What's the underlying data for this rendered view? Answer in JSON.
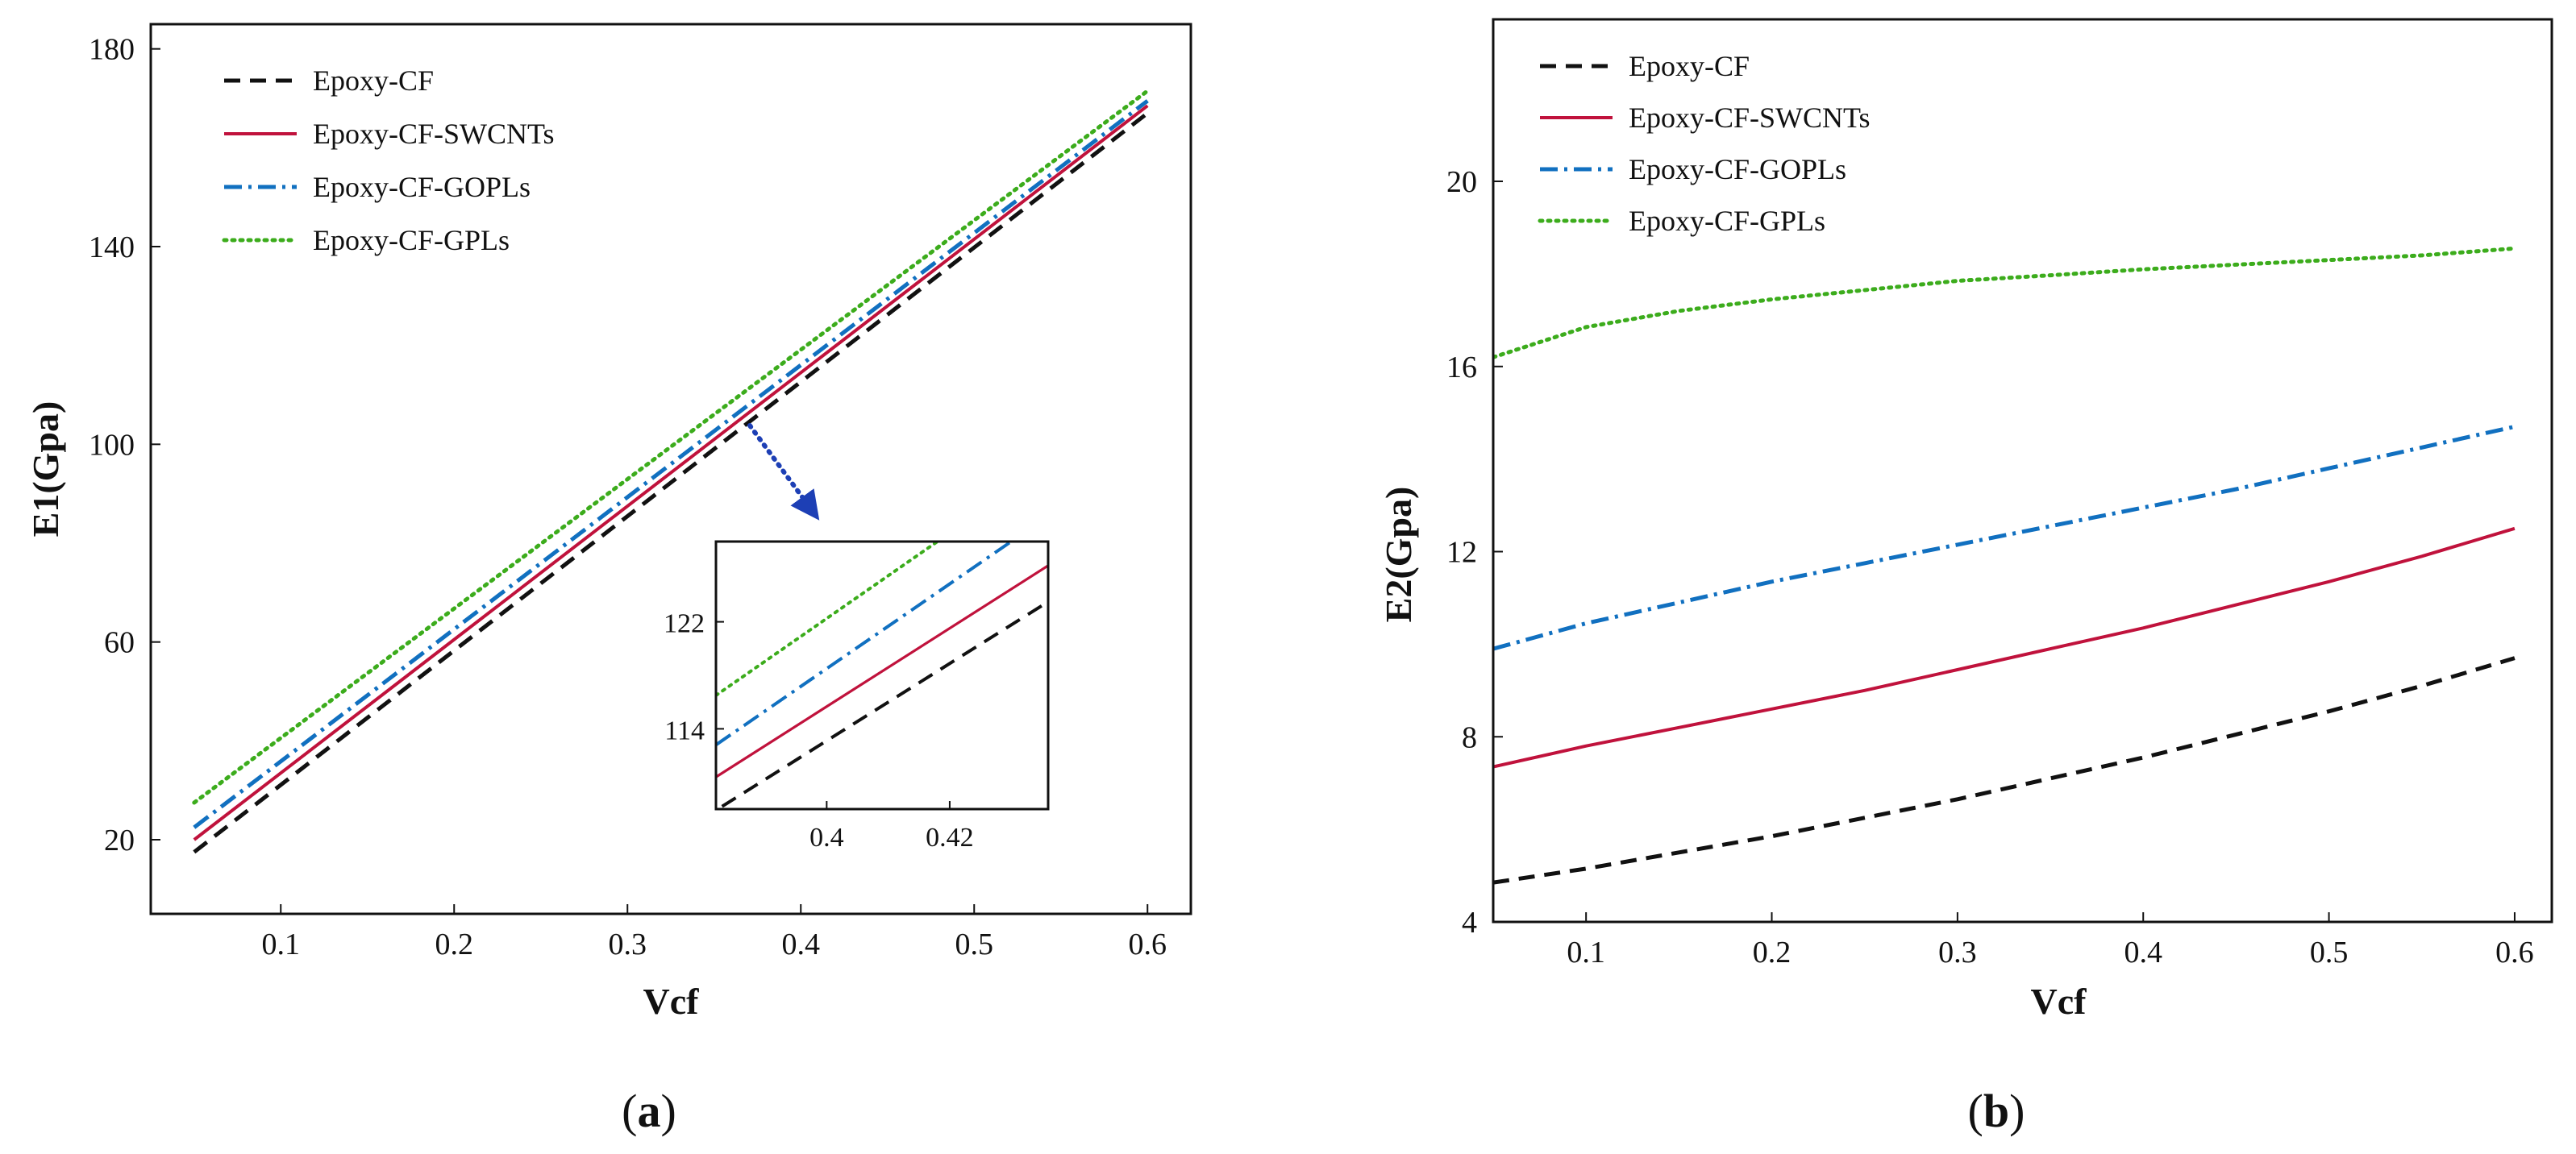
{
  "chart_data": [
    {
      "type": "line",
      "panel_label": "a",
      "xlabel": "Vcf",
      "ylabel": "E1(Gpa)",
      "xlim": [
        0.025,
        0.625
      ],
      "ylim": [
        5,
        185
      ],
      "x_ticks": [
        0.1,
        0.2,
        0.3,
        0.4,
        0.5,
        0.6
      ],
      "x_tick_labels": [
        "0.1",
        "0.2",
        "0.3",
        "0.4",
        "0.5",
        "0.6"
      ],
      "y_ticks": [
        20,
        60,
        100,
        140,
        180
      ],
      "y_tick_labels": [
        "20",
        "60",
        "100",
        "140",
        "180"
      ],
      "legend_position": "top-left",
      "series": [
        {
          "name": "Epoxy-CF",
          "style": "dashed",
          "color": "#111111",
          "x": [
            0.05,
            0.6
          ],
          "y": [
            17.5,
            167
          ]
        },
        {
          "name": "Epoxy-CF-SWCNTs",
          "style": "solid",
          "color": "#c0123c",
          "x": [
            0.05,
            0.6
          ],
          "y": [
            20.0,
            168.5
          ]
        },
        {
          "name": "Epoxy-CF-GOPLs",
          "style": "dashdot",
          "color": "#1170c0",
          "x": [
            0.05,
            0.6
          ],
          "y": [
            22.5,
            169.5
          ]
        },
        {
          "name": "Epoxy-CF-GPLs",
          "style": "dotted",
          "color": "#3cac1c",
          "x": [
            0.05,
            0.6
          ],
          "y": [
            27.5,
            171.5
          ]
        }
      ],
      "inset": {
        "xlim": [
          0.382,
          0.436
        ],
        "ylim": [
          108,
          128
        ],
        "x_ticks": [
          0.4,
          0.42
        ],
        "x_tick_labels": [
          "0.4",
          "0.42"
        ],
        "y_ticks": [
          114,
          122
        ],
        "y_tick_labels": [
          "114",
          "122"
        ],
        "series": [
          {
            "name": "Epoxy-CF",
            "x": [
              0.383,
              0.436
            ],
            "y": [
              108.2,
              123.5
            ]
          },
          {
            "name": "Epoxy-CF-SWCNTs",
            "x": [
              0.382,
              0.436
            ],
            "y": [
              110.4,
              126.2
            ]
          },
          {
            "name": "Epoxy-CF-GOPLs",
            "x": [
              0.382,
              0.43
            ],
            "y": [
              112.8,
              128.0
            ]
          },
          {
            "name": "Epoxy-CF-GPLs",
            "x": [
              0.382,
              0.418
            ],
            "y": [
              116.5,
              128.0
            ]
          }
        ]
      }
    },
    {
      "type": "line",
      "panel_label": "b",
      "xlabel": "Vcf",
      "ylabel": "E2(Gpa)",
      "xlim": [
        0.05,
        0.62
      ],
      "ylim": [
        4,
        23.5
      ],
      "x_ticks": [
        0.1,
        0.2,
        0.3,
        0.4,
        0.5,
        0.6
      ],
      "x_tick_labels": [
        "0.1",
        "0.2",
        "0.3",
        "0.4",
        "0.5",
        "0.6"
      ],
      "y_ticks": [
        4,
        8,
        12,
        16,
        20
      ],
      "y_tick_labels": [
        "4",
        "8",
        "12",
        "16",
        "20"
      ],
      "legend_position": "top-left",
      "series": [
        {
          "name": "Epoxy-CF",
          "style": "dashed",
          "color": "#111111",
          "x": [
            0.05,
            0.1,
            0.15,
            0.2,
            0.25,
            0.3,
            0.35,
            0.4,
            0.45,
            0.5,
            0.55,
            0.6
          ],
          "y": [
            4.85,
            5.15,
            5.5,
            5.85,
            6.25,
            6.65,
            7.1,
            7.55,
            8.05,
            8.55,
            9.1,
            9.7
          ]
        },
        {
          "name": "Epoxy-CF-SWCNTs",
          "style": "solid",
          "color": "#c0123c",
          "x": [
            0.05,
            0.1,
            0.15,
            0.2,
            0.25,
            0.3,
            0.35,
            0.4,
            0.45,
            0.5,
            0.55,
            0.6
          ],
          "y": [
            7.35,
            7.8,
            8.2,
            8.6,
            9.0,
            9.45,
            9.9,
            10.35,
            10.85,
            11.35,
            11.9,
            12.5
          ]
        },
        {
          "name": "Epoxy-CF-GOPLs",
          "style": "dashdot",
          "color": "#1170c0",
          "x": [
            0.05,
            0.1,
            0.15,
            0.2,
            0.25,
            0.3,
            0.35,
            0.4,
            0.45,
            0.5,
            0.55,
            0.6
          ],
          "y": [
            9.9,
            10.45,
            10.9,
            11.35,
            11.75,
            12.15,
            12.55,
            12.95,
            13.35,
            13.8,
            14.25,
            14.7
          ]
        },
        {
          "name": "Epoxy-CF-GPLs",
          "style": "dotted",
          "color": "#3cac1c",
          "x": [
            0.05,
            0.1,
            0.15,
            0.2,
            0.25,
            0.3,
            0.35,
            0.4,
            0.45,
            0.5,
            0.55,
            0.6
          ],
          "y": [
            16.2,
            16.85,
            17.2,
            17.45,
            17.65,
            17.85,
            17.97,
            18.1,
            18.2,
            18.3,
            18.4,
            18.55
          ]
        }
      ]
    }
  ]
}
